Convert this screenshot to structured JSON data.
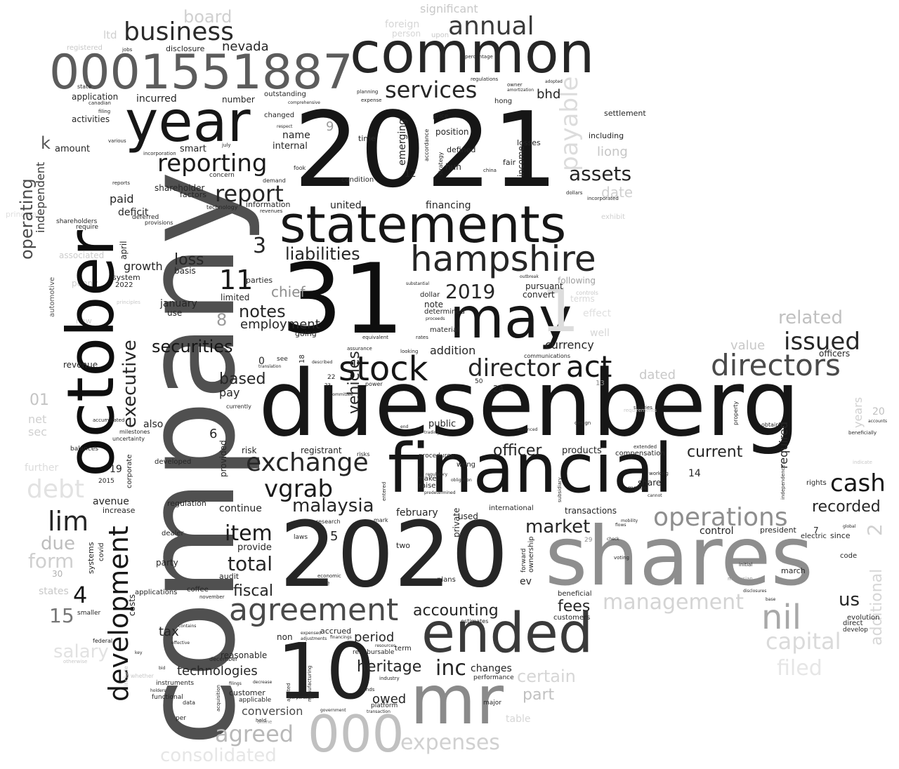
{
  "palette": {
    "black": "#0e0e0e",
    "dark": "#2b2b2b",
    "mid": "#555555",
    "grey": "#8e8e8e",
    "light": "#c4c4c4",
    "faint": "#e6e6e6"
  },
  "words": {
    "company": "company",
    "duesenberg": "duesenberg",
    "y2021": "2021",
    "n31": "31",
    "y2020": "2020",
    "financial": "financial",
    "shares": "shares",
    "october": "october",
    "year": "year",
    "common": "common",
    "statements": "statements",
    "cik": "0001551887",
    "may": "may",
    "mr": "mr",
    "n10": "10",
    "ended": "ended",
    "stock": "stock",
    "hampshire": "hampshire",
    "directors": "directors",
    "agreement": "agreement",
    "n000": "000",
    "director": "director",
    "act": "act",
    "exchange": "exchange",
    "business": "business",
    "annual": "annual",
    "reporting": "reporting",
    "services": "services",
    "report": "report",
    "assets": "assets",
    "issued": "issued",
    "cash": "cash",
    "operations": "operations",
    "nil": "nil",
    "development": "development",
    "lim": "lim",
    "vgrab": "vgrab",
    "malaysia": "malaysia",
    "securities": "securities",
    "liabilities": "liabilities",
    "executive": "executive",
    "vehicles": "vehicles",
    "total": "total",
    "item": "item",
    "market": "market",
    "inc": "inc",
    "heritage": "heritage",
    "notes": "notes",
    "n2019": "2019",
    "loss": "loss",
    "n11": "11",
    "n3": "3",
    "n4": "4",
    "operating": "operating",
    "independent": "independent",
    "us": "us",
    "fees": "fees",
    "accounting": "accounting",
    "officer": "officer",
    "current": "current",
    "recorded": "recorded",
    "related": "related",
    "payable": "payable",
    "debt": "debt",
    "management": "management",
    "capital": "capital",
    "expenses": "expenses",
    "agreed": "agreed",
    "consolidated": "consolidated",
    "certain": "certain",
    "part": "part",
    "filed": "filed",
    "salary": "salary",
    "form": "form",
    "due": "due",
    "n15": "15",
    "n1": "1",
    "n01": "01",
    "net": "net",
    "sec": "sec",
    "board": "board",
    "significant": "significant",
    "nevada": "nevada",
    "bhd": "bhd",
    "liong": "liong",
    "date": "date",
    "value": "value",
    "dated": "dated",
    "years": "years",
    "additional": "additional",
    "chief": "chief",
    "employment": "employment",
    "based": "based",
    "fiscal": "fiscal",
    "tax": "tax",
    "technologies": "technologies",
    "conversion": "conversion",
    "period": "period",
    "owed": "owed",
    "changes": "changes",
    "currency": "currency",
    "addition": "addition",
    "pay": "pay",
    "continue": "continue",
    "provide": "provide",
    "paid": "paid",
    "growth": "growth",
    "deficit": "deficit",
    "incurred": "incurred",
    "application": "application",
    "activities": "activities",
    "amount": "amount",
    "smart": "smart",
    "shareholder": "shareholder",
    "name": "name",
    "internal": "internal",
    "united": "united",
    "financing": "financing",
    "position": "position",
    "defined": "defined",
    "hun": "hun",
    "losses": "losses",
    "fair": "fair",
    "income": "income",
    "emerging": "emerging",
    "including": "including",
    "settlement": "settlement",
    "information": "information",
    "factors": "factors",
    "january": "january",
    "use": "use",
    "limited": "limited",
    "parties": "parties",
    "pursuant": "pursuant",
    "convert": "convert",
    "note": "note",
    "dollar": "dollar",
    "determined": "determined",
    "public": "public",
    "products": "products",
    "compensation": "compensation",
    "required": "required",
    "share": "share",
    "avenue": "avenue",
    "increase": "increase",
    "regulation": "regulation",
    "developed": "developed",
    "revenue": "revenue",
    "also": "also",
    "risk": "risk",
    "registrant": "registrant",
    "february": "february",
    "international": "international",
    "transactions": "transactions",
    "control": "control",
    "president": "president",
    "officers": "officers",
    "march": "march",
    "accrued": "accrued",
    "non": "non",
    "reasonable": "reasonable",
    "customer": "customer",
    "plans": "plans",
    "used": "used",
    "two": "two",
    "private": "private",
    "audit": "audit",
    "party": "party",
    "costs": "costs",
    "applications": "applications",
    "coffee": "coffee",
    "systems": "systems",
    "covid": "covid",
    "dealer": "dealer",
    "ev": "ev",
    "beneficial": "beneficial",
    "customers": "customers",
    "ownership": "ownership",
    "forward": "forward",
    "evolution": "evolution",
    "direct": "direct",
    "develop": "develop",
    "since": "since",
    "code": "code",
    "term": "term",
    "reimbursable": "reimbursable",
    "acquisition": "acquisition",
    "n2022": "2022",
    "system": "system",
    "basis": "basis",
    "april": "april",
    "outstanding": "outstanding",
    "number": "number",
    "disclosure": "disclosure",
    "changed": "changed",
    "hong": "hong",
    "price": "price",
    "time": "time",
    "condition": "condition",
    "concern": "concern",
    "technology": "technology",
    "penny": "penny",
    "automotive": "automotive",
    "associated": "associated",
    "shareholders": "shareholders",
    "require": "require",
    "provisions": "provisions",
    "deferred": "deferred",
    "corporate": "corporate",
    "provided": "provided",
    "milestones": "milestones",
    "uncertainty": "uncertainty",
    "accumulated": "accumulated",
    "currently": "currently",
    "balances": "balances",
    "going": "going",
    "material": "material",
    "communications": "communications",
    "following": "following",
    "raise": "raise",
    "procedures": "procedures",
    "make": "make",
    "weng": "weng",
    "rights": "rights",
    "electric": "electric",
    "independence": "independence",
    "mobile": "mobile",
    "working": "working",
    "risks": "risks",
    "power": "power",
    "instruments": "instruments",
    "functional": "functional",
    "applicable": "applicable",
    "platform": "platform",
    "performance": "performance",
    "major": "major",
    "research": "research",
    "balance": "balance",
    "economic": "economic",
    "laws": "laws",
    "mark": "mark",
    "ltd": "ltd",
    "table": "table",
    "effect": "effect",
    "exhibit": "exhibit",
    "terms": "terms",
    "well": "well",
    "new": "new",
    "n9": "9",
    "n12": "12",
    "n8": "8",
    "n0": "0",
    "n6": "6",
    "n19": "19",
    "n5": "5",
    "n14": "14",
    "n7": "7",
    "n2": "2",
    "n20": "20",
    "n30": "30",
    "n13": "13",
    "n22": "22",
    "n23": "23",
    "n24": "24",
    "n50": "50",
    "n18": "18",
    "n29": "29",
    "n2015": "2015",
    "k": "k",
    "per": "per",
    "data": "data",
    "see": "see",
    "fook": "fook",
    "demand": "demand",
    "revenues": "revenues",
    "strategy": "strategy",
    "accordance": "accordance",
    "china": "china",
    "foreign": "foreign",
    "upon": "upon",
    "federal": "federal",
    "smaller": "smaller",
    "estimates": "estimates",
    "funds": "funds",
    "industry": "industry",
    "december": "december",
    "november": "november",
    "mariana": "mariana",
    "state": "state",
    "states": "states",
    "registered": "registered",
    "jobs": "jobs",
    "filing": "filing",
    "canadian": "canadian",
    "various": "various",
    "reports": "reports",
    "july": "july",
    "incorporated": "incorporated",
    "including2": "incorporation",
    "dollars": "dollars",
    "obtain": "obtain",
    "property": "property",
    "design": "design",
    "salaries": "salaries",
    "extended": "extended",
    "interests": "interests",
    "percentage": "percentage",
    "regulations": "regulations",
    "owner": "owner",
    "adopted": "adopted",
    "amortization": "amortization",
    "planning": "planning",
    "expense": "expense",
    "comprehensive": "comprehensive",
    "respect": "respect",
    "person": "person",
    "equivalent": "equivalent",
    "assurance": "assurance",
    "looking": "looking",
    "rates": "rates",
    "translation": "translation",
    "committee": "committee",
    "outbreak": "outbreak",
    "substantial": "substantial",
    "proceeds": "proceeds",
    "described": "described",
    "end": "end",
    "trading": "trading",
    "advanced": "advanced",
    "obligation": "obligation",
    "mobility": "mobility",
    "flows": "flows",
    "voting": "voting",
    "initial": "initial",
    "malaysian": "malaysian",
    "disclosures": "disclosures",
    "base": "base",
    "global": "global",
    "cannot": "cannot",
    "contains": "contains",
    "effective": "effective",
    "expensed": "expensed",
    "adjustments": "adjustments",
    "financings": "financings",
    "resources": "resources",
    "transaction": "transaction",
    "government": "government",
    "corporation": "corporation",
    "manufacturing": "manufacturing",
    "audited": "audited",
    "online": "online",
    "held": "held",
    "filings": "filings",
    "decrease": "decrease",
    "include": "include",
    "holders": "holders",
    "bid": "bid",
    "key": "key",
    "whether": "whether",
    "otherwise": "otherwise",
    "principles": "principles",
    "principal": "principal",
    "further": "further",
    "requirements": "requirements",
    "entered": "entered",
    "predetermined": "predetermined",
    "regulatory": "regulatory",
    "subsidiary": "subsidiary",
    "check": "check",
    "controls": "controls",
    "indicate": "indicate",
    "beneficially": "beneficially",
    "accounts": "accounts"
  }
}
